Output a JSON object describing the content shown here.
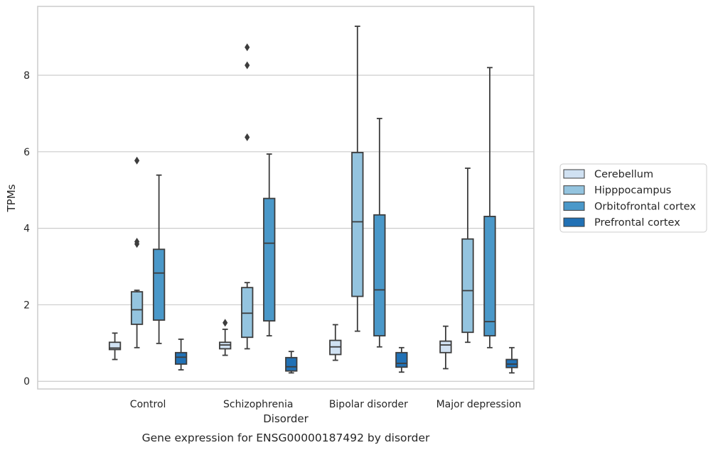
{
  "chart_data": {
    "type": "box",
    "title": "Gene expression for ENSG00000187492 by disorder",
    "xlabel": "Disorder",
    "ylabel": "TPMs",
    "ylim": [
      -0.2,
      9.8
    ],
    "yticks": [
      0,
      2,
      4,
      6,
      8
    ],
    "grid": "horizontal",
    "legend_position": "right",
    "categories": [
      "Control",
      "Schizophrenia",
      "Bipolar disorder",
      "Major depression"
    ],
    "series": [
      {
        "name": "Cerebellum",
        "color": "#d0e1f2",
        "boxes": [
          {
            "whislo": 0.57,
            "q1": 0.83,
            "med": 0.87,
            "q3": 1.02,
            "whishi": 1.26,
            "fliers": []
          },
          {
            "whislo": 0.68,
            "q1": 0.85,
            "med": 0.95,
            "q3": 1.02,
            "whishi": 1.36,
            "fliers": [
              1.53
            ]
          },
          {
            "whislo": 0.55,
            "q1": 0.7,
            "med": 0.9,
            "q3": 1.07,
            "whishi": 1.48,
            "fliers": []
          },
          {
            "whislo": 0.33,
            "q1": 0.75,
            "med": 0.95,
            "q3": 1.05,
            "whishi": 1.44,
            "fliers": []
          }
        ]
      },
      {
        "name": "Hipppocampus",
        "color": "#94c4df",
        "boxes": [
          {
            "whislo": 0.88,
            "q1": 1.49,
            "med": 1.87,
            "q3": 2.34,
            "whishi": 2.38,
            "fliers": [
              3.59,
              3.65,
              5.77
            ]
          },
          {
            "whislo": 0.85,
            "q1": 1.15,
            "med": 1.78,
            "q3": 2.45,
            "whishi": 2.58,
            "fliers": [
              6.38,
              8.26,
              8.73
            ]
          },
          {
            "whislo": 1.31,
            "q1": 2.22,
            "med": 4.17,
            "q3": 5.98,
            "whishi": 9.28,
            "fliers": []
          },
          {
            "whislo": 1.02,
            "q1": 1.28,
            "med": 2.37,
            "q3": 3.72,
            "whishi": 5.57,
            "fliers": []
          }
        ]
      },
      {
        "name": "Orbitofrontal cortex",
        "color": "#4a98c9",
        "boxes": [
          {
            "whislo": 0.99,
            "q1": 1.6,
            "med": 2.83,
            "q3": 3.45,
            "whishi": 5.39,
            "fliers": []
          },
          {
            "whislo": 1.19,
            "q1": 1.58,
            "med": 3.61,
            "q3": 4.78,
            "whishi": 5.94,
            "fliers": []
          },
          {
            "whislo": 0.9,
            "q1": 1.19,
            "med": 2.39,
            "q3": 4.35,
            "whishi": 6.87,
            "fliers": []
          },
          {
            "whislo": 0.88,
            "q1": 1.19,
            "med": 1.56,
            "q3": 4.31,
            "whishi": 8.2,
            "fliers": []
          }
        ]
      },
      {
        "name": "Prefrontal cortex",
        "color": "#2171b5",
        "boxes": [
          {
            "whislo": 0.3,
            "q1": 0.45,
            "med": 0.63,
            "q3": 0.75,
            "whishi": 1.1,
            "fliers": []
          },
          {
            "whislo": 0.22,
            "q1": 0.27,
            "med": 0.38,
            "q3": 0.62,
            "whishi": 0.78,
            "fliers": []
          },
          {
            "whislo": 0.24,
            "q1": 0.37,
            "med": 0.47,
            "q3": 0.75,
            "whishi": 0.88,
            "fliers": []
          },
          {
            "whislo": 0.22,
            "q1": 0.36,
            "med": 0.45,
            "q3": 0.57,
            "whishi": 0.88,
            "fliers": []
          }
        ]
      }
    ]
  }
}
